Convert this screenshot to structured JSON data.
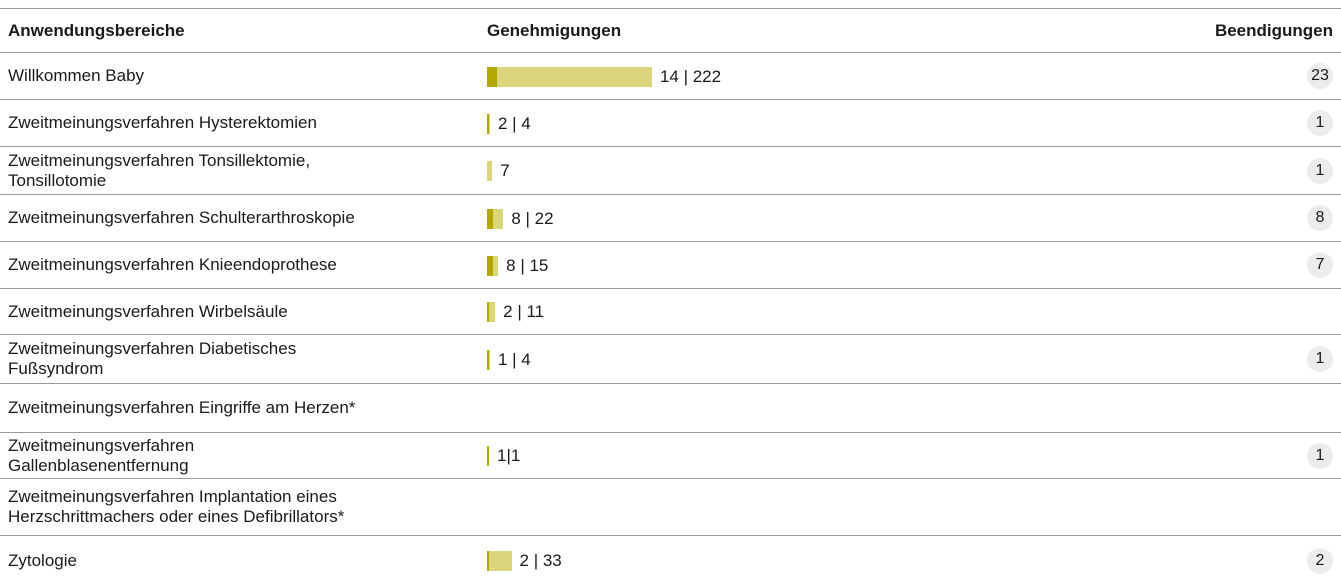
{
  "table": {
    "header": [
      "Anwendungsbereiche",
      "Genehmigungen",
      "Beendigungen"
    ],
    "rows": [
      {
        "name": [
          "Willkommen Baby"
        ],
        "approvals": [
          14,
          222
        ],
        "approvals_label": "14 | 222",
        "terminations": 23
      },
      {
        "name": [
          "Zweitmeinungsverfahren Hysterektomien"
        ],
        "approvals": [
          2,
          4
        ],
        "approvals_label": "2 | 4",
        "terminations": 1
      },
      {
        "name": [
          "Zweitmeinungsverfahren Tonsillektomie,",
          "Tonsillotomie"
        ],
        "approvals": [
          7
        ],
        "approvals_label": "7",
        "terminations": 1
      },
      {
        "name": [
          "Zweitmeinungsverfahren Schulterarthroskopie"
        ],
        "approvals": [
          8,
          22
        ],
        "approvals_label": "8 | 22",
        "terminations": 8
      },
      {
        "name": [
          "Zweitmeinungsverfahren Knieendoprothese"
        ],
        "approvals": [
          8,
          15
        ],
        "approvals_label": "8 | 15",
        "terminations": 7
      },
      {
        "name": [
          "Zweitmeinungsverfahren Wirbelsäule"
        ],
        "approvals": [
          2,
          11
        ],
        "approvals_label": "2 | 11"
      },
      {
        "name": [
          "Zweitmeinungsverfahren Diabetisches",
          "Fußsyndrom"
        ],
        "approvals": [
          1,
          4
        ],
        "approvals_label": "1 | 4",
        "terminations": 1
      },
      {
        "name": [
          "Zweitmeinungsverfahren Eingriffe am Herzen*"
        ]
      },
      {
        "name": [
          "Zweitmeinungsverfahren",
          "Gallenblasenentfernung"
        ],
        "approvals": [
          1,
          1
        ],
        "approvals_label": "1|1",
        "terminations": 1
      },
      {
        "name": [
          "Zweitmeinungsverfahren Implantation eines",
          "Herzschrittmachers oder eines Defibrillators*"
        ]
      },
      {
        "name": [
          "Zytologie"
        ],
        "approvals": [
          2,
          33
        ],
        "approvals_label": "2 | 33",
        "terminations": 2
      }
    ],
    "colors": {
      "part": "#b3a800",
      "total": "#dbd67c"
    }
  }
}
